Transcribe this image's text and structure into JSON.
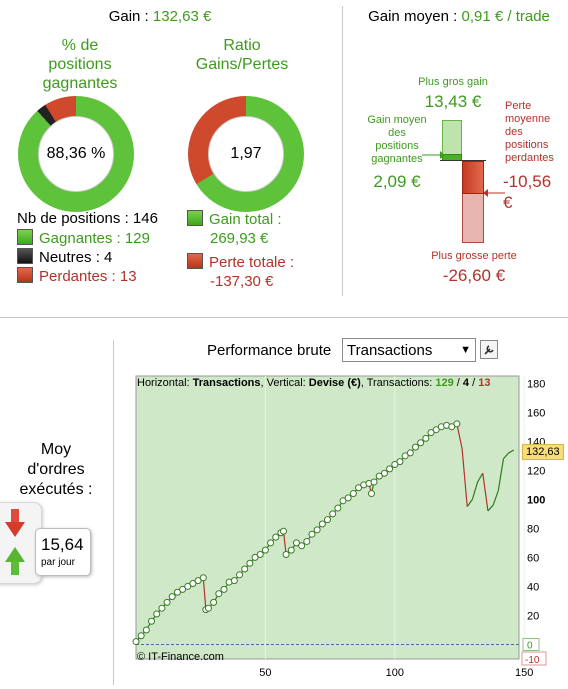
{
  "gain": {
    "label": "Gain :",
    "value": "132,63 €"
  },
  "gain_moyen": {
    "label": "Gain moyen :",
    "value": "0,91 € / trade"
  },
  "pct_positions": {
    "title": [
      "% de",
      "positions",
      "gagnantes"
    ],
    "value": "88,36 %",
    "fraction_winning": 0.8836,
    "fraction_neutral": 0.0274
  },
  "ratio": {
    "title": [
      "Ratio",
      "Gains/Pertes"
    ],
    "value": "1,97",
    "fraction_gain": 0.663
  },
  "positions": {
    "total": "Nb de positions : 146",
    "winning": "Gagnantes : 129",
    "neutral": "Neutres : 4",
    "losing": "Perdantes : 13"
  },
  "totals": {
    "gain_label": "Gain total :",
    "gain_value": "269,93 €",
    "loss_label": "Perte totale :",
    "loss_value": "-137,30 €"
  },
  "bars": {
    "biggest_gain_label": "Plus gros gain",
    "biggest_gain_value": "13,43 €",
    "avg_gain_label": [
      "Gain moyen",
      "des",
      "positions",
      "gagnantes"
    ],
    "avg_gain_value": "2,09 €",
    "avg_loss_label": [
      "Perte",
      "moyenne",
      "des",
      "positions",
      "perdantes"
    ],
    "avg_loss_value": [
      "-10,56",
      "€"
    ],
    "biggest_loss_label": "Plus grosse perte",
    "biggest_loss_value": "-26,60 €"
  },
  "orders": {
    "label": [
      "Moy",
      "d'ordres",
      "exécutés :"
    ],
    "value": "15,64",
    "unit": "par jour"
  },
  "performance": {
    "label": "Performance brute",
    "select_value": "Transactions",
    "info_prefix": "Horizontal: ",
    "info_h": "Transactions",
    "info_mid": ", Vertical: ",
    "info_v": "Devise (€)",
    "info_tr": ", Transactions: ",
    "info_w": "129",
    "info_sep1": " / ",
    "info_n": "4",
    "info_sep2": " / ",
    "info_l": "13",
    "copyright": "© IT-Finance.com",
    "current_value": "132,63",
    "colors": {
      "bg": "#cfe9c8",
      "up": "#2f7a1f",
      "down": "#b3322a"
    }
  },
  "chart_data": {
    "type": "line",
    "xlabel": "",
    "ylabel": "",
    "xlim": [
      0,
      148
    ],
    "ylim": [
      -10,
      185
    ],
    "x_ticks": [
      50,
      100,
      150
    ],
    "y_ticks": [
      -10,
      0,
      20,
      40,
      60,
      80,
      100,
      120,
      140,
      160,
      180
    ],
    "series": [
      {
        "x": [
          0,
          2,
          4,
          6,
          8,
          10,
          12,
          14,
          16,
          18,
          20,
          22,
          24,
          26,
          27,
          28,
          30,
          32,
          34,
          36,
          38,
          40,
          42,
          44,
          46,
          48,
          50,
          52,
          54,
          56,
          57,
          58,
          60,
          62,
          64,
          66,
          68,
          70,
          72,
          74,
          76,
          78,
          80,
          82,
          84,
          86,
          88,
          90,
          91,
          92,
          94,
          96,
          98,
          100,
          102,
          104,
          106,
          108,
          110,
          112,
          114,
          116,
          118,
          120,
          122,
          124,
          126,
          128,
          130,
          132,
          134,
          136,
          138,
          140,
          142,
          144,
          146
        ],
        "y": [
          2,
          6,
          10,
          16,
          21,
          25,
          29,
          33,
          36,
          38,
          40,
          42,
          44,
          46,
          24,
          25,
          29,
          35,
          38,
          43,
          44,
          48,
          52,
          56,
          60,
          62,
          65,
          70,
          74,
          77,
          78,
          62,
          65,
          70,
          68,
          71,
          76,
          79,
          83,
          86,
          90,
          94,
          99,
          101,
          104,
          108,
          110,
          111,
          104,
          112,
          116,
          118,
          121,
          124,
          126,
          130,
          132,
          136,
          139,
          142,
          146,
          148,
          150,
          151,
          150,
          152,
          135,
          95,
          100,
          112,
          118,
          92,
          96,
          106,
          128,
          132,
          134
        ]
      }
    ]
  }
}
